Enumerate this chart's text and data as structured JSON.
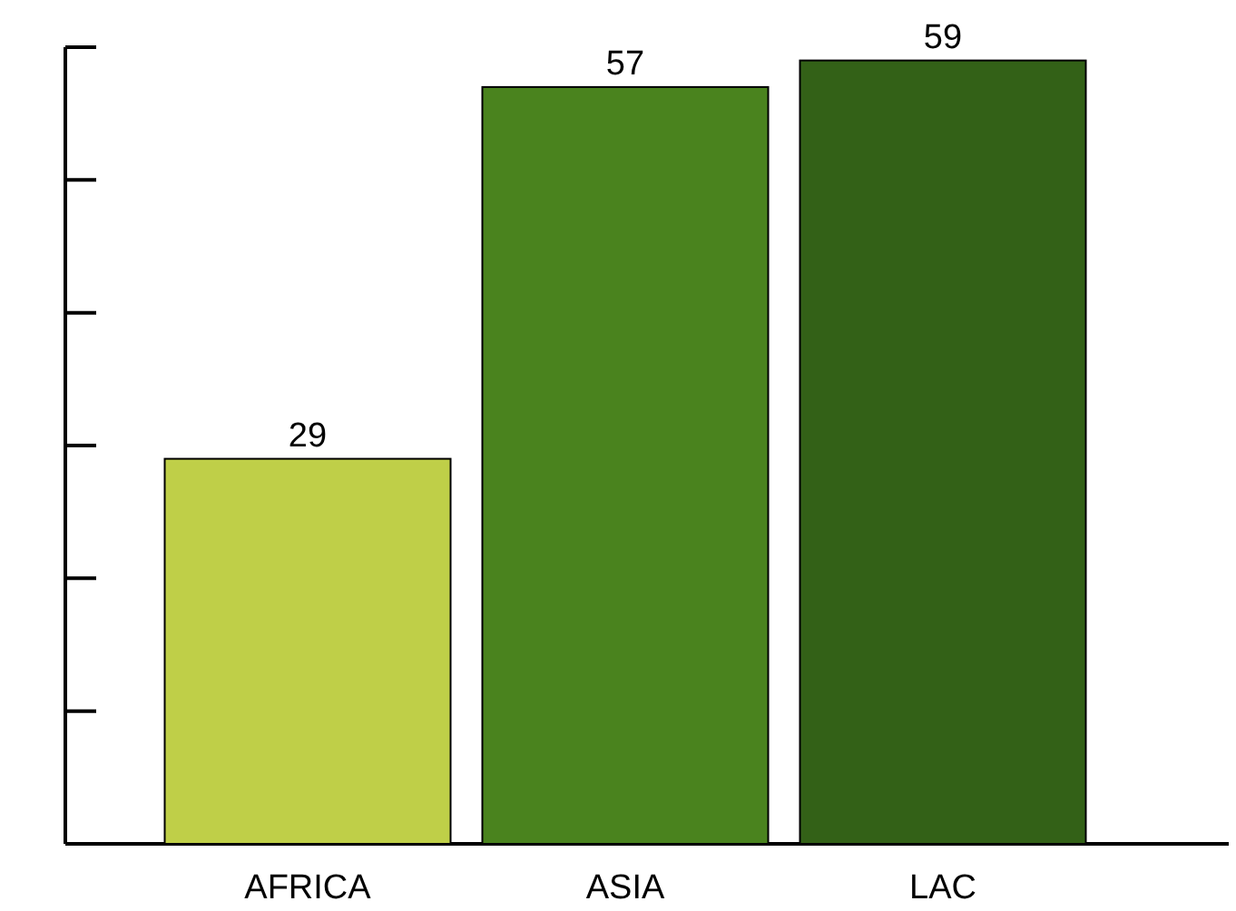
{
  "chart_data": {
    "type": "bar",
    "categories": [
      "AFRICA",
      "ASIA",
      "LAC"
    ],
    "values": [
      29,
      57,
      59
    ],
    "colors": [
      "#bfcf48",
      "#4a831e",
      "#336117"
    ],
    "ylim": [
      0,
      60
    ],
    "tick_labels": "x",
    "data_labels": true
  }
}
